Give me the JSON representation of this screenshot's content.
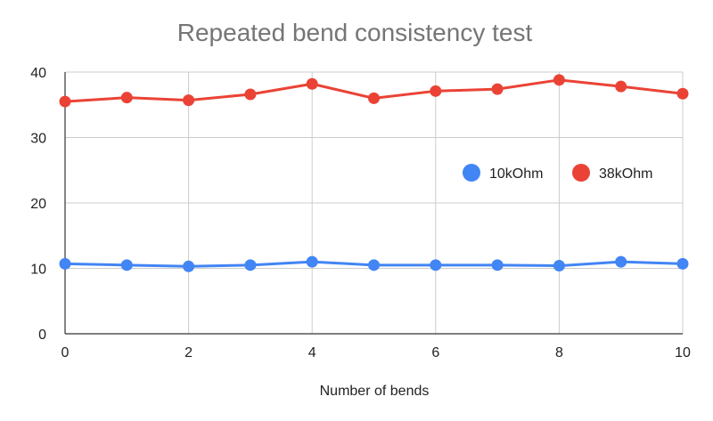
{
  "chart_data": {
    "type": "line",
    "title": "Repeated bend consistency test",
    "xlabel": "Number of bends",
    "ylabel": "",
    "x": [
      0,
      1,
      2,
      3,
      4,
      5,
      6,
      7,
      8,
      9,
      10
    ],
    "xlim": [
      0,
      10
    ],
    "xticks": [
      0,
      2,
      4,
      6,
      8,
      10
    ],
    "ylim": [
      0,
      40
    ],
    "yticks": [
      0,
      10,
      20,
      30,
      40
    ],
    "grid": true,
    "legend_position": "right",
    "series": [
      {
        "name": "10kOhm",
        "color": "#4285f4",
        "values": [
          10.7,
          10.5,
          10.3,
          10.5,
          11.0,
          10.5,
          10.5,
          10.5,
          10.4,
          11.0,
          10.7
        ]
      },
      {
        "name": "38kOhm",
        "color": "#ea4335",
        "values": [
          35.5,
          36.1,
          35.7,
          36.6,
          38.2,
          36.0,
          37.1,
          37.4,
          38.8,
          37.8,
          36.7
        ]
      }
    ]
  }
}
